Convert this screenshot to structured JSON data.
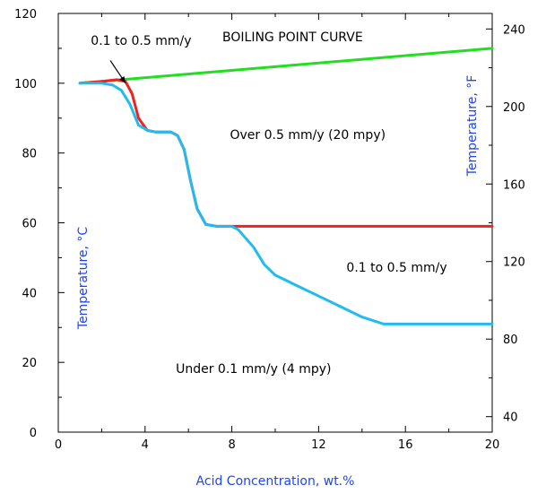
{
  "chart_data": {
    "type": "line",
    "xlabel": "Acid Concentration, wt.%",
    "ylabel_left": "Temperature, °C",
    "ylabel_right": "Temperature, °F",
    "xlim": [
      0,
      20
    ],
    "ylim": [
      0,
      120
    ],
    "ylim_right_F": [
      32,
      248
    ],
    "x_ticks": [
      0,
      4,
      8,
      12,
      16,
      20
    ],
    "y_ticks": [
      0,
      20,
      40,
      60,
      80,
      100,
      120
    ],
    "y_right_ticks": [
      40,
      80,
      120,
      160,
      200,
      240
    ],
    "grid": false,
    "series": [
      {
        "name": "BOILING POINT CURVE",
        "color": "#22dd22",
        "x": [
          1,
          20
        ],
        "y": [
          100,
          110
        ]
      },
      {
        "color": "#ee2222",
        "x": [
          1,
          2,
          2.7,
          3.1,
          3.4,
          3.7,
          4.1,
          4.5,
          5.2,
          5.5,
          5.8,
          6.1,
          6.4,
          6.8,
          7.3,
          8,
          10,
          14,
          20
        ],
        "y": [
          100,
          100.5,
          101,
          100.5,
          97,
          90,
          86.5,
          86,
          86,
          85,
          81,
          72,
          64,
          59.5,
          59,
          59,
          59,
          59,
          59
        ]
      },
      {
        "color": "#22bbee",
        "x": [
          1,
          2,
          2.5,
          2.9,
          3.3,
          3.7,
          4.1,
          4.5,
          5.2,
          5.5,
          5.8,
          6.1,
          6.4,
          6.8,
          7.3,
          8,
          8.3,
          9,
          9.5,
          10,
          11,
          12,
          13,
          14,
          15,
          16,
          17,
          18,
          19,
          20
        ],
        "y": [
          100,
          100,
          99.5,
          98,
          94,
          88,
          86.5,
          86,
          86,
          85,
          81,
          72,
          64,
          59.5,
          59,
          59,
          58,
          53,
          48,
          45,
          42,
          39,
          36,
          33,
          31,
          31,
          31,
          31,
          31,
          31
        ]
      }
    ],
    "annotations": [
      {
        "text": "0.1 to 0.5 mm/y",
        "x": 1.5,
        "y": 111
      },
      {
        "text": "BOILING POINT CURVE",
        "x": 10.8,
        "y": 112
      },
      {
        "text": "Over 0.5 mm/y (20 mpy)",
        "x": 11.5,
        "y": 84
      },
      {
        "text": "0.1 to 0.5 mm/y",
        "x": 15.6,
        "y": 46
      },
      {
        "text": "Under 0.1 mm/y (4 mpy)",
        "x": 9,
        "y": 17
      }
    ],
    "arrow": {
      "from": [
        2.4,
        106.5
      ],
      "to": [
        3.1,
        100
      ]
    }
  }
}
